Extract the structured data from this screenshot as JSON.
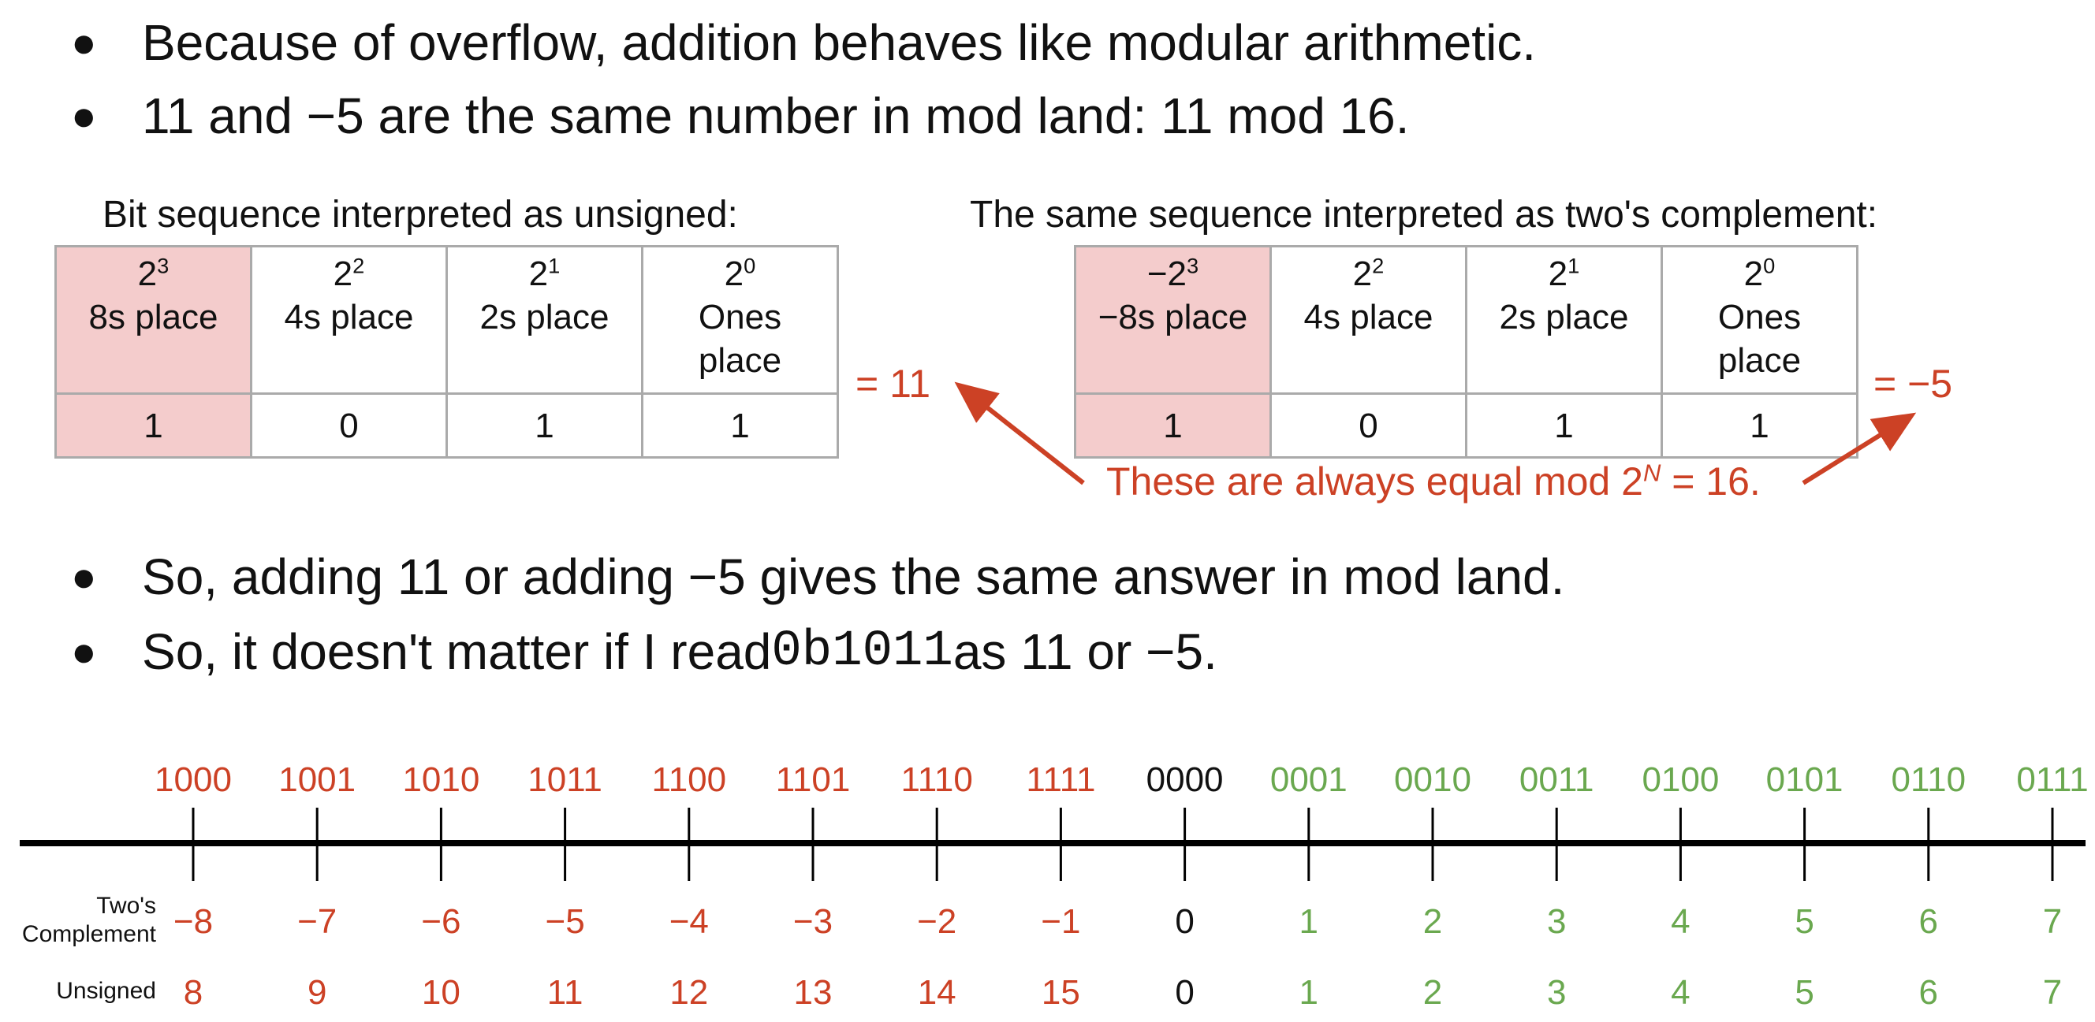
{
  "bullets_top": [
    "Because of overflow, addition behaves like modular arithmetic.",
    "11 and −5 are the same number in mod land: 11 mod 16."
  ],
  "bullets_bottom": {
    "line1": "So, adding 11 or adding −5 gives the same answer in mod land.",
    "line2_before": "So, it doesn't matter if I read ",
    "line2_code": "0b1011",
    "line2_after": " as 11 or −5."
  },
  "bullet_symbol": "●",
  "unsigned_table": {
    "caption": "Bit sequence interpreted as unsigned:",
    "cols": [
      {
        "base": "2",
        "exp": "3",
        "line1": "8s place",
        "line2": "",
        "value": "1"
      },
      {
        "base": "2",
        "exp": "2",
        "line1": "4s place",
        "line2": "",
        "value": "0"
      },
      {
        "base": "2",
        "exp": "1",
        "line1": "2s place",
        "line2": "",
        "value": "1"
      },
      {
        "base": "2",
        "exp": "0",
        "line1": "Ones",
        "line2": "place",
        "value": "1"
      }
    ],
    "result": "= 11"
  },
  "twos_table": {
    "caption": "The same sequence interpreted as two's complement:",
    "cols": [
      {
        "base": "−2",
        "exp": "3",
        "line1": "−8s place",
        "line2": "",
        "value": "1"
      },
      {
        "base": "2",
        "exp": "2",
        "line1": "4s place",
        "line2": "",
        "value": "0"
      },
      {
        "base": "2",
        "exp": "1",
        "line1": "2s place",
        "line2": "",
        "value": "1"
      },
      {
        "base": "2",
        "exp": "0",
        "line1": "Ones",
        "line2": "place",
        "value": "1"
      }
    ],
    "result": "= −5"
  },
  "note": {
    "before": "These are always equal mod 2",
    "exp": "N",
    "after": " = 16."
  },
  "number_line": {
    "binary": [
      "1000",
      "1001",
      "1010",
      "1011",
      "1100",
      "1101",
      "1110",
      "1111",
      "0000",
      "0001",
      "0010",
      "0011",
      "0100",
      "0101",
      "0110",
      "0111"
    ],
    "twos_label": [
      "Two's",
      "Complement"
    ],
    "twos": [
      "−8",
      "−7",
      "−6",
      "−5",
      "−4",
      "−3",
      "−2",
      "−1",
      "0",
      "1",
      "2",
      "3",
      "4",
      "5",
      "6",
      "7"
    ],
    "unsigned_label": "Unsigned",
    "unsigned": [
      "8",
      "9",
      "10",
      "11",
      "12",
      "13",
      "14",
      "15",
      "0",
      "1",
      "2",
      "3",
      "4",
      "5",
      "6",
      "7"
    ]
  },
  "colors": {
    "negative": "#cc4125",
    "zero": "#111111",
    "positive": "#6aa84f",
    "highlight": "#f4cccc"
  }
}
